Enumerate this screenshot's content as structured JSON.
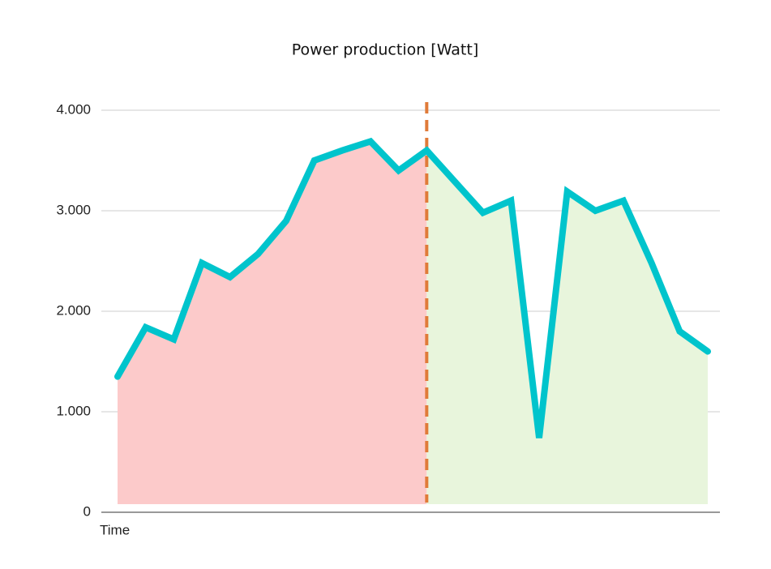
{
  "chart_data": {
    "type": "line",
    "title": "Power production [Watt]",
    "x_label": "Time",
    "categories": [
      null,
      null,
      null,
      null,
      null,
      null,
      null,
      null,
      null,
      null,
      null,
      null,
      null,
      null,
      null,
      null,
      null,
      null,
      null,
      null,
      null,
      null
    ],
    "series": [
      {
        "color": "#00c4cc",
        "values": [
          1350,
          1840,
          1720,
          2480,
          2340,
          2570,
          2900,
          3500,
          3600,
          3690,
          3400,
          3600,
          3290,
          2980,
          3100,
          740,
          3190,
          3000,
          3100,
          2480,
          1800,
          1600
        ]
      }
    ],
    "area_colors": [
      "#fccaca",
      "#e8f5dc"
    ],
    "divider_index": 11,
    "divider_color": "#e07b39",
    "ylim": [
      0,
      4000
    ],
    "yticks": [
      0,
      {
        "value": 1000,
        "label": "1.000"
      },
      {
        "value": 2000,
        "label": "2.000"
      },
      {
        "value": 3000,
        "label": "3.000"
      },
      {
        "value": 4000,
        "label": "4.000"
      }
    ],
    "grid": true
  }
}
